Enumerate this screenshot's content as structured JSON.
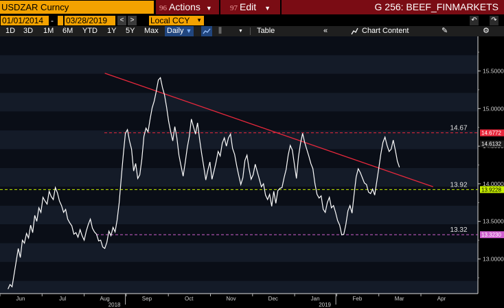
{
  "header": {
    "ticker": "USDZAR Curncy",
    "actions": {
      "num": "96",
      "label": "Actions"
    },
    "edit": {
      "num": "97",
      "label": "Edit"
    },
    "graph_title": "G 256: BEEF_FINMARKETS"
  },
  "toolbar": {
    "start_date": "01/01/2014",
    "dash": "-",
    "end_date": "03/28/2019",
    "currency": "Local CCY"
  },
  "periods": [
    "1D",
    "3D",
    "1M",
    "6M",
    "YTD",
    "1Y",
    "5Y",
    "Max"
  ],
  "frequency": "Daily",
  "table_label": "Table",
  "chart_content_label": "Chart Content",
  "colors": {
    "accent_orange": "#f3a200",
    "menu_red": "#7a0c14",
    "price_line": "#ffffff",
    "trend_line": "#e8283c",
    "resistance_line": "#e8283c",
    "support_line": "#c8f000",
    "low_line": "#d060d0"
  },
  "chart_data": {
    "type": "line",
    "x_labels": [
      "Jun",
      "Jul",
      "Aug",
      "Sep",
      "Oct",
      "Nov",
      "Dec",
      "Jan",
      "Feb",
      "Mar",
      "Apr"
    ],
    "year_labels": [
      {
        "text": "2018",
        "after": "Aug"
      },
      {
        "text": "2019",
        "after": "Jan"
      }
    ],
    "y_ticks": [
      "15.5000",
      "15.0000",
      "14.5000",
      "14.0000",
      "13.5000",
      "13.0000"
    ],
    "y_tick_values": [
      15.5,
      15.0,
      14.5,
      14.0,
      13.5,
      13.0
    ],
    "ylim": [
      12.54,
      15.96
    ],
    "last_price": "14.6132",
    "levels": [
      {
        "value": 14.6772,
        "label": "14.67",
        "tag": "14.6772",
        "style": "resistance"
      },
      {
        "value": 13.9228,
        "label": "13.92",
        "tag": "13.9228",
        "style": "support"
      },
      {
        "value": 13.323,
        "label": "13.32",
        "tag": "13.3230",
        "style": "low"
      }
    ],
    "trendline": {
      "from": {
        "x_month": 2.0,
        "y": 15.47
      },
      "to": {
        "x_month": 9.8,
        "y": 13.96
      }
    },
    "series": [
      {
        "x_start_month": -0.3,
        "x_end_month": 9.0,
        "values": [
          12.6,
          12.66,
          12.63,
          12.8,
          12.97,
          13.14,
          13.02,
          13.25,
          13.21,
          13.34,
          13.28,
          13.45,
          13.35,
          13.58,
          13.5,
          13.68,
          13.62,
          13.82,
          13.77,
          13.73,
          13.9,
          13.83,
          13.79,
          13.95,
          13.88,
          13.77,
          13.71,
          13.62,
          13.66,
          13.53,
          13.48,
          13.44,
          13.33,
          13.35,
          13.29,
          13.39,
          13.31,
          13.25,
          13.37,
          13.46,
          13.53,
          13.41,
          13.36,
          13.33,
          13.24,
          13.25,
          13.16,
          13.14,
          13.22,
          13.37,
          13.31,
          13.42,
          13.36,
          13.52,
          13.75,
          14.08,
          14.39,
          14.67,
          14.72,
          14.57,
          14.46,
          14.17,
          14.27,
          14.07,
          14.12,
          14.33,
          14.63,
          14.74,
          14.69,
          14.86,
          15.01,
          15.1,
          15.23,
          15.38,
          15.41,
          15.28,
          15.18,
          15.02,
          14.83,
          14.69,
          14.57,
          14.76,
          14.61,
          14.38,
          14.24,
          14.1,
          14.28,
          14.48,
          14.63,
          14.86,
          14.76,
          14.66,
          14.81,
          14.59,
          14.4,
          14.23,
          14.05,
          14.18,
          14.29,
          14.06,
          14.17,
          14.29,
          14.43,
          14.37,
          14.54,
          14.61,
          14.5,
          14.61,
          14.66,
          14.47,
          14.39,
          14.24,
          14.11,
          13.99,
          14.08,
          14.31,
          14.38,
          14.2,
          14.06,
          14.12,
          14.26,
          14.16,
          14.06,
          13.96,
          14.0,
          13.85,
          13.79,
          13.86,
          13.7,
          13.9,
          13.74,
          13.91,
          13.94,
          13.95,
          14.08,
          14.19,
          14.38,
          14.51,
          14.45,
          14.26,
          14.07,
          14.36,
          14.54,
          14.67,
          14.55,
          14.46,
          14.37,
          14.27,
          14.2,
          14.0,
          13.86,
          13.81,
          13.84,
          13.66,
          13.62,
          13.75,
          13.82,
          13.68,
          13.71,
          13.62,
          13.51,
          13.45,
          13.32,
          13.33,
          13.46,
          13.64,
          13.71,
          13.61,
          13.86,
          14.09,
          14.2,
          14.15,
          14.08,
          14.01,
          13.99,
          13.89,
          13.87,
          13.93,
          13.85,
          14.03,
          14.21,
          14.4,
          14.55,
          14.62,
          14.51,
          14.43,
          14.46,
          14.58,
          14.45,
          14.3,
          14.22
        ]
      }
    ]
  }
}
